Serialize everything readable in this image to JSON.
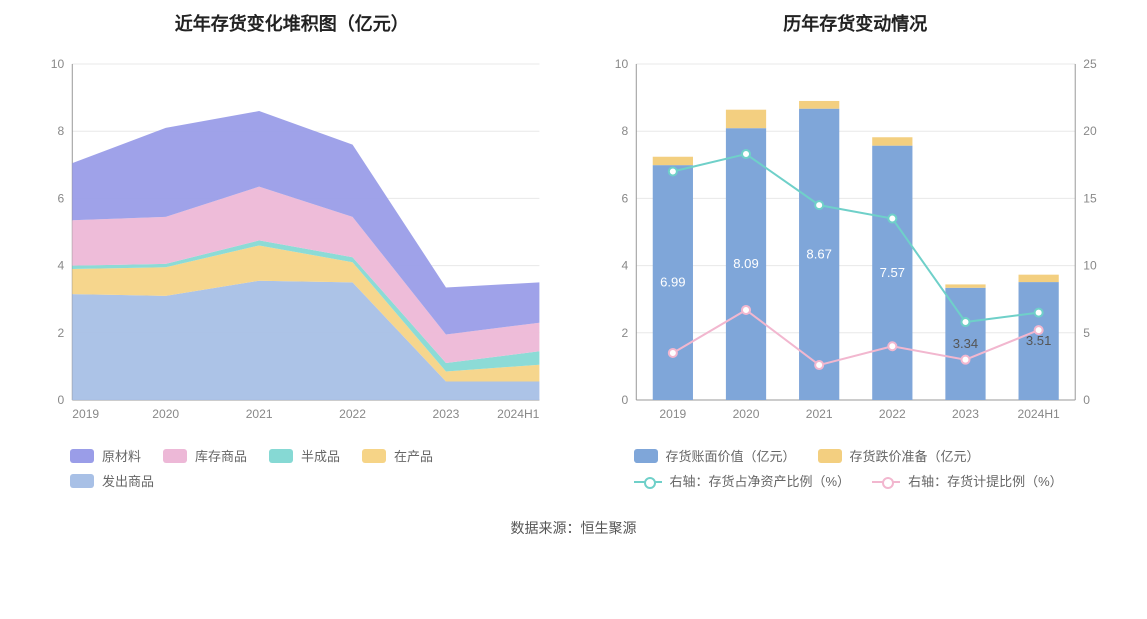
{
  "source_label": "数据来源：恒生聚源",
  "left_chart": {
    "type": "stacked-area",
    "title": "近年存货变化堆积图（亿元）",
    "categories": [
      "2019",
      "2020",
      "2021",
      "2022",
      "2023",
      "2024H1"
    ],
    "ylim": [
      0,
      10
    ],
    "ytick_step": 2,
    "background_color": "#ffffff",
    "grid_color": "#e8e8e8",
    "axis_color": "#999999",
    "label_color": "#888888",
    "label_fontsize": 12,
    "title_fontsize": 18,
    "series": [
      {
        "name": "发出商品",
        "color": "#a8c0e6",
        "values": [
          3.15,
          3.1,
          3.55,
          3.5,
          0.55,
          0.55
        ]
      },
      {
        "name": "在产品",
        "color": "#f6d487",
        "values": [
          0.75,
          0.85,
          1.05,
          0.6,
          0.3,
          0.5
        ]
      },
      {
        "name": "半成品",
        "color": "#86d9d4",
        "values": [
          0.1,
          0.1,
          0.15,
          0.15,
          0.25,
          0.4
        ]
      },
      {
        "name": "库存商品",
        "color": "#edb8d7",
        "values": [
          1.35,
          1.4,
          1.6,
          1.2,
          0.85,
          0.85
        ]
      },
      {
        "name": "原材料",
        "color": "#9a9de8",
        "values": [
          1.7,
          2.65,
          2.25,
          2.15,
          1.4,
          1.2
        ]
      }
    ],
    "legend_order": [
      "原材料",
      "库存商品",
      "半成品",
      "在产品",
      "发出商品"
    ]
  },
  "right_chart": {
    "type": "bar-line-dual-axis",
    "title": "历年存货变动情况",
    "categories": [
      "2019",
      "2020",
      "2021",
      "2022",
      "2023",
      "2024H1"
    ],
    "left_ylim": [
      0,
      10
    ],
    "left_ytick_step": 2,
    "right_ylim": [
      0,
      25
    ],
    "right_ytick_step": 5,
    "background_color": "#ffffff",
    "grid_color": "#e8e8e8",
    "axis_color": "#999999",
    "label_color": "#888888",
    "label_fontsize": 12,
    "title_fontsize": 18,
    "bar_width": 0.55,
    "bars": [
      {
        "name": "存货账面价值（亿元）",
        "color": "#7fa6d9",
        "values": [
          6.99,
          8.09,
          8.67,
          7.57,
          3.34,
          3.51
        ]
      },
      {
        "name": "存货跌价准备（亿元）",
        "color": "#f3cf80",
        "values": [
          0.25,
          0.55,
          0.23,
          0.25,
          0.1,
          0.22
        ]
      }
    ],
    "bar_value_labels": [
      "6.99",
      "8.09",
      "8.67",
      "7.57",
      "3.34",
      "3.51"
    ],
    "lines": [
      {
        "name": "右轴：存货占净资产比例（%）",
        "color": "#6fd0c9",
        "values": [
          17.0,
          18.3,
          14.5,
          13.5,
          5.8,
          6.5
        ]
      },
      {
        "name": "右轴：存货计提比例（%）",
        "color": "#f2b7cf",
        "values": [
          3.5,
          6.7,
          2.6,
          4.0,
          3.0,
          5.2
        ]
      }
    ]
  }
}
